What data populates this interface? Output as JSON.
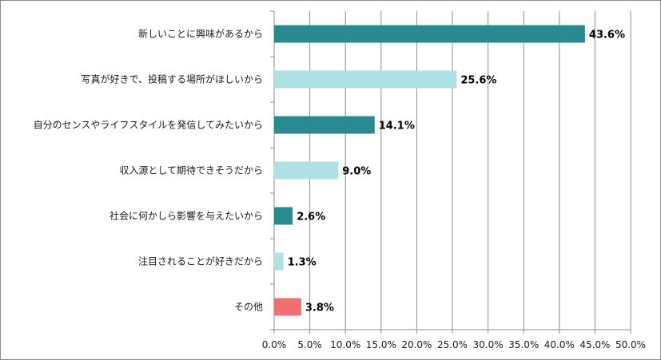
{
  "chart_data": {
    "type": "bar",
    "orientation": "horizontal",
    "categories": [
      "新しいことに興味があるから",
      "写真が好きで、投稿する場所がほしいから",
      "自分のセンスやライフスタイルを発信してみたいから",
      "収入源として期待できそうだから",
      "社会に何かしら影響を与えたいから",
      "注目されることが好きだから",
      "その他"
    ],
    "values": [
      43.6,
      25.6,
      14.1,
      9.0,
      2.6,
      1.3,
      3.8
    ],
    "data_labels": [
      "43.6%",
      "25.6%",
      "14.1%",
      "9.0%",
      "2.6%",
      "1.3%",
      "3.8%"
    ],
    "bar_colors": [
      "#2a8a91",
      "#aee0e4",
      "#2a8a91",
      "#aee0e4",
      "#2a8a91",
      "#aee0e4",
      "#f07070"
    ],
    "xlim": [
      0,
      50
    ],
    "xticks": [
      0,
      5,
      10,
      15,
      20,
      25,
      30,
      35,
      40,
      45,
      50
    ],
    "xtick_labels": [
      "0.0%",
      "5.0%",
      "10.0%",
      "15.0%",
      "20.0%",
      "25.0%",
      "30.0%",
      "35.0%",
      "40.0%",
      "45.0%",
      "50.0%"
    ],
    "title": "",
    "xlabel": "",
    "ylabel": "",
    "grid": "vertical",
    "legend": "none"
  }
}
